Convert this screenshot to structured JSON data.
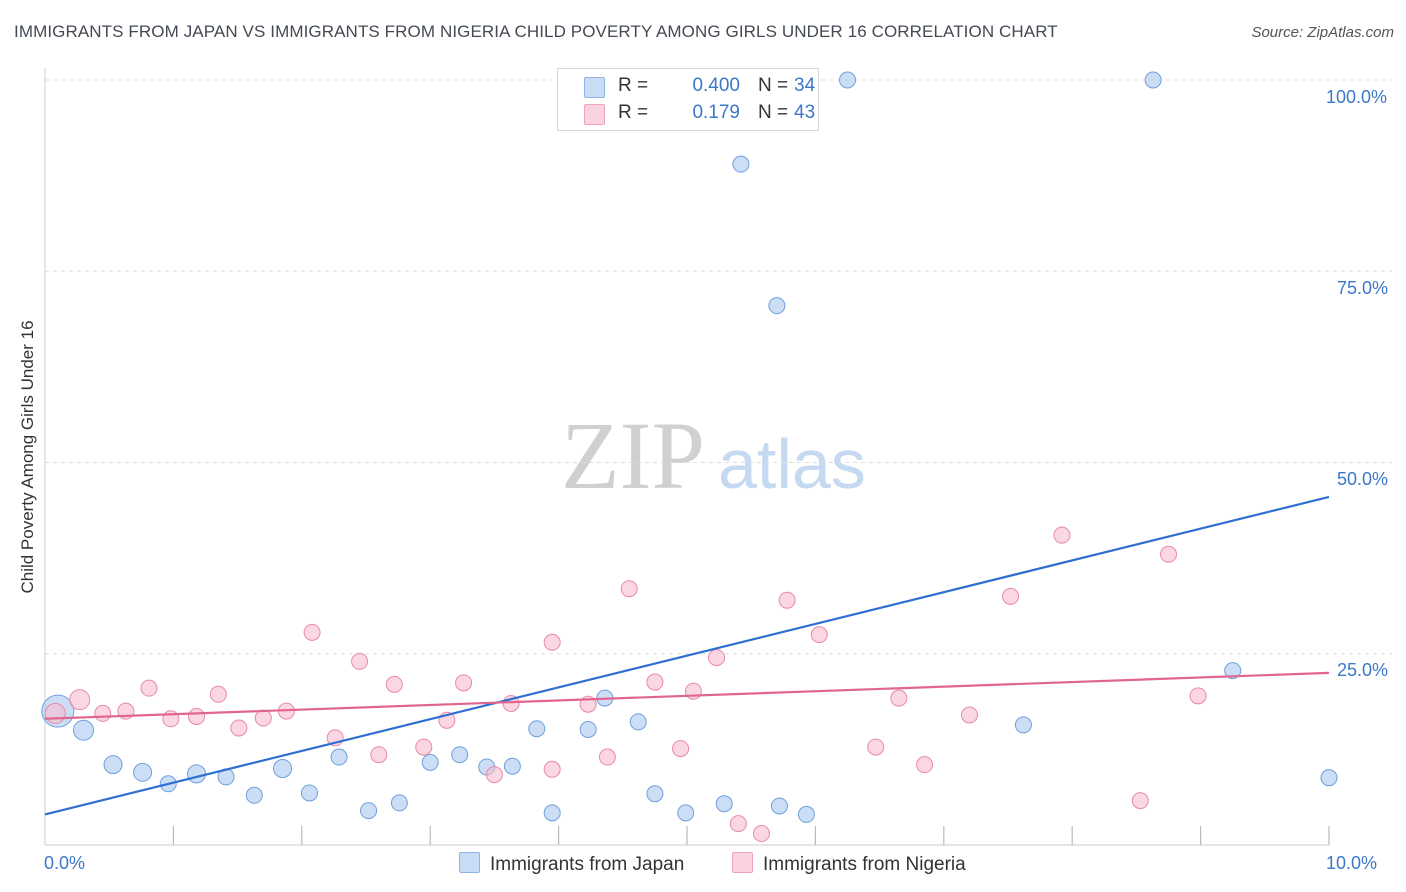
{
  "title": "IMMIGRANTS FROM JAPAN VS IMMIGRANTS FROM NIGERIA CHILD POVERTY AMONG GIRLS UNDER 16 CORRELATION CHART",
  "source": "Source: ZipAtlas.com",
  "watermark": {
    "zip": "ZIP",
    "atlas": "atlas"
  },
  "legend": {
    "rows": [
      {
        "r_label": "R =",
        "r_value": "0.400",
        "n_label": "N =",
        "n_value": "34",
        "color": "#aac8f0"
      },
      {
        "r_label": "R =",
        "r_value": "0.179",
        "n_label": "N =",
        "n_value": "43",
        "color": "#f7bcd0"
      }
    ]
  },
  "bottom_legend": {
    "japan": "Immigrants from Japan",
    "nigeria": "Immigrants from Nigeria"
  },
  "axes": {
    "y_label": "Child Poverty Among Girls Under 16",
    "x_min_label": "0.0%",
    "x_max_label": "10.0%",
    "y_ticks": [
      "100.0%",
      "75.0%",
      "50.0%",
      "25.0%"
    ]
  },
  "colors": {
    "japan_fill": "#aac8f0",
    "japan_stroke": "#6f9fdc",
    "japan_line": "#2e6fcf",
    "nigeria_fill": "#f7bcd0",
    "nigeria_stroke": "#e889a8",
    "nigeria_line": "#e0668f",
    "grid": "#dddddd",
    "tick_text": "#3b78c9"
  },
  "chart_data": {
    "type": "scatter",
    "xlabel": "",
    "ylabel": "Child Poverty Among Girls Under 16",
    "xlim": [
      0,
      10
    ],
    "ylim": [
      0,
      100
    ],
    "y_ticks": [
      25,
      50,
      75,
      100
    ],
    "grid": true,
    "legend_position": "top-center",
    "series": [
      {
        "name": "Immigrants from Japan",
        "r": 0.4,
        "n": 34,
        "trend": {
          "x": [
            0,
            10
          ],
          "y": [
            4,
            45.5
          ]
        },
        "points": [
          [
            0.1,
            17.5,
            16
          ],
          [
            0.3,
            15,
            10
          ],
          [
            0.53,
            10.5,
            9
          ],
          [
            0.76,
            9.5,
            9
          ],
          [
            0.96,
            8,
            8
          ],
          [
            1.18,
            9.3,
            9
          ],
          [
            1.41,
            8.9,
            8
          ],
          [
            1.63,
            6.5,
            8
          ],
          [
            1.85,
            10,
            9
          ],
          [
            2.06,
            6.8,
            8
          ],
          [
            2.29,
            11.5,
            8
          ],
          [
            2.52,
            4.5,
            8
          ],
          [
            2.76,
            5.5,
            8
          ],
          [
            3.0,
            10.8,
            8
          ],
          [
            3.23,
            11.8,
            8
          ],
          [
            3.44,
            10.2,
            8
          ],
          [
            3.64,
            10.3,
            8
          ],
          [
            3.83,
            15.2,
            8
          ],
          [
            3.95,
            4.2,
            8
          ],
          [
            4.23,
            15.1,
            8
          ],
          [
            4.36,
            19.2,
            8
          ],
          [
            4.62,
            16.1,
            8
          ],
          [
            4.75,
            6.7,
            8
          ],
          [
            4.99,
            4.2,
            8
          ],
          [
            5.29,
            5.4,
            8
          ],
          [
            5.72,
            5.1,
            8
          ],
          [
            5.93,
            4,
            8
          ],
          [
            5.42,
            89,
            8
          ],
          [
            5.7,
            70.5,
            8
          ],
          [
            6.25,
            100,
            8
          ],
          [
            8.63,
            100,
            8
          ],
          [
            7.62,
            15.7,
            8
          ],
          [
            9.25,
            22.8,
            8
          ],
          [
            10.0,
            8.8,
            8
          ]
        ]
      },
      {
        "name": "Immigrants from Nigeria",
        "r": 0.179,
        "n": 43,
        "trend": {
          "x": [
            0,
            10
          ],
          "y": [
            16.5,
            22.5
          ]
        },
        "points": [
          [
            0.27,
            19,
            10
          ],
          [
            0.45,
            17.2,
            8
          ],
          [
            0.63,
            17.5,
            8
          ],
          [
            0.81,
            20.5,
            8
          ],
          [
            0.98,
            16.5,
            8
          ],
          [
            1.18,
            16.8,
            8
          ],
          [
            1.35,
            19.7,
            8
          ],
          [
            1.51,
            15.3,
            8
          ],
          [
            1.7,
            16.6,
            8
          ],
          [
            1.88,
            17.5,
            8
          ],
          [
            2.08,
            27.8,
            8
          ],
          [
            2.26,
            14,
            8
          ],
          [
            2.45,
            24,
            8
          ],
          [
            2.6,
            11.8,
            8
          ],
          [
            2.72,
            21,
            8
          ],
          [
            2.95,
            12.8,
            8
          ],
          [
            3.13,
            16.3,
            8
          ],
          [
            3.26,
            21.2,
            8
          ],
          [
            3.5,
            9.2,
            8
          ],
          [
            3.63,
            18.5,
            8
          ],
          [
            3.95,
            26.5,
            8
          ],
          [
            3.95,
            9.9,
            8
          ],
          [
            4.23,
            18.4,
            8
          ],
          [
            4.38,
            11.5,
            8
          ],
          [
            4.55,
            33.5,
            8
          ],
          [
            4.75,
            21.3,
            8
          ],
          [
            4.95,
            12.6,
            8
          ],
          [
            5.05,
            20.1,
            8
          ],
          [
            5.23,
            24.5,
            8
          ],
          [
            5.4,
            2.8,
            8
          ],
          [
            5.58,
            1.5,
            8
          ],
          [
            5.78,
            32,
            8
          ],
          [
            6.03,
            27.5,
            8
          ],
          [
            6.47,
            12.8,
            8
          ],
          [
            6.65,
            19.2,
            8
          ],
          [
            6.85,
            10.5,
            8
          ],
          [
            7.2,
            17,
            8
          ],
          [
            7.52,
            32.5,
            8
          ],
          [
            7.92,
            40.5,
            8
          ],
          [
            8.53,
            5.8,
            8
          ],
          [
            8.75,
            38,
            8
          ],
          [
            8.98,
            19.5,
            8
          ],
          [
            0.08,
            17.2,
            10
          ]
        ]
      }
    ]
  }
}
